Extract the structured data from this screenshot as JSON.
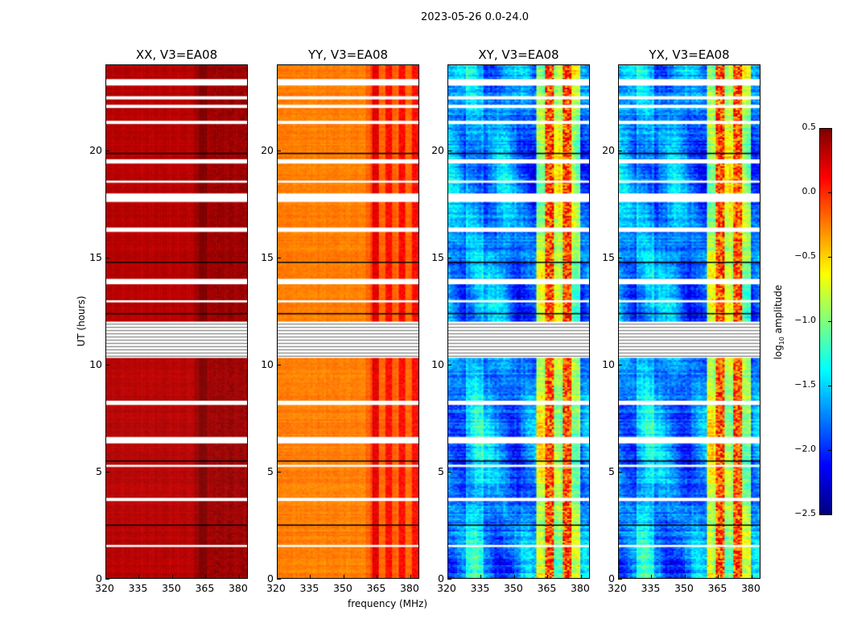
{
  "chart_data": {
    "type": "heatmap",
    "title": "2023-05-26 0.0-24.0",
    "xlabel": "frequency (MHz)",
    "ylabel": "UT (hours)",
    "xlim": [
      320,
      384
    ],
    "ylim": [
      0,
      24
    ],
    "xticks": [
      "320",
      "335",
      "350",
      "365",
      "380"
    ],
    "xtick_values": [
      320,
      335,
      350,
      365,
      380
    ],
    "yticks": [
      "0",
      "5",
      "10",
      "15",
      "20"
    ],
    "ytick_values": [
      0,
      5,
      10,
      15,
      20
    ],
    "colorbar": {
      "label_prefix": "log",
      "label_sub": "10",
      "label_suffix": " amplitude",
      "colormap": "jet",
      "range": [
        -2.5,
        0.5
      ],
      "ticks": [
        "0.5",
        "0.0",
        "−0.5",
        "−1.0",
        "−1.5",
        "−2.0",
        "−2.5"
      ],
      "tick_values": [
        0.5,
        0.0,
        -0.5,
        -1.0,
        -1.5,
        -2.0,
        -2.5
      ]
    },
    "panels": [
      {
        "title": "XX, V3=EA08",
        "baseline": 0.33,
        "rfi_band": [
          360,
          384
        ],
        "rfi_level": 0.42,
        "noise": 0.06
      },
      {
        "title": "YY, V3=EA08",
        "baseline": -0.25,
        "rfi_band": [
          360,
          384
        ],
        "rfi_level": 0.1,
        "noise": 0.08
      },
      {
        "title": "XY, V3=EA08",
        "baseline": -1.75,
        "rfi_band": [
          360,
          380
        ],
        "rfi_level": -0.1,
        "noise": 0.3
      },
      {
        "title": "YX, V3=EA08",
        "baseline": -1.75,
        "rfi_band": [
          360,
          380
        ],
        "rfi_level": -0.1,
        "noise": 0.3
      }
    ],
    "flagged_hours": [
      [
        23.05,
        23.35
      ],
      [
        22.4,
        22.55
      ],
      [
        22.0,
        22.15
      ],
      [
        21.25,
        21.4
      ],
      [
        19.4,
        19.6
      ],
      [
        18.5,
        18.6
      ],
      [
        17.6,
        18.0
      ],
      [
        16.2,
        16.4
      ],
      [
        13.75,
        14.0
      ],
      [
        12.9,
        13.0
      ],
      [
        10.3,
        12.0
      ],
      [
        8.1,
        8.3
      ],
      [
        6.3,
        6.6
      ],
      [
        5.2,
        5.3
      ],
      [
        3.6,
        3.75
      ],
      [
        1.45,
        1.55
      ]
    ],
    "dark_line_hours": [
      19.9,
      14.8,
      12.4,
      5.5,
      2.5
    ]
  }
}
